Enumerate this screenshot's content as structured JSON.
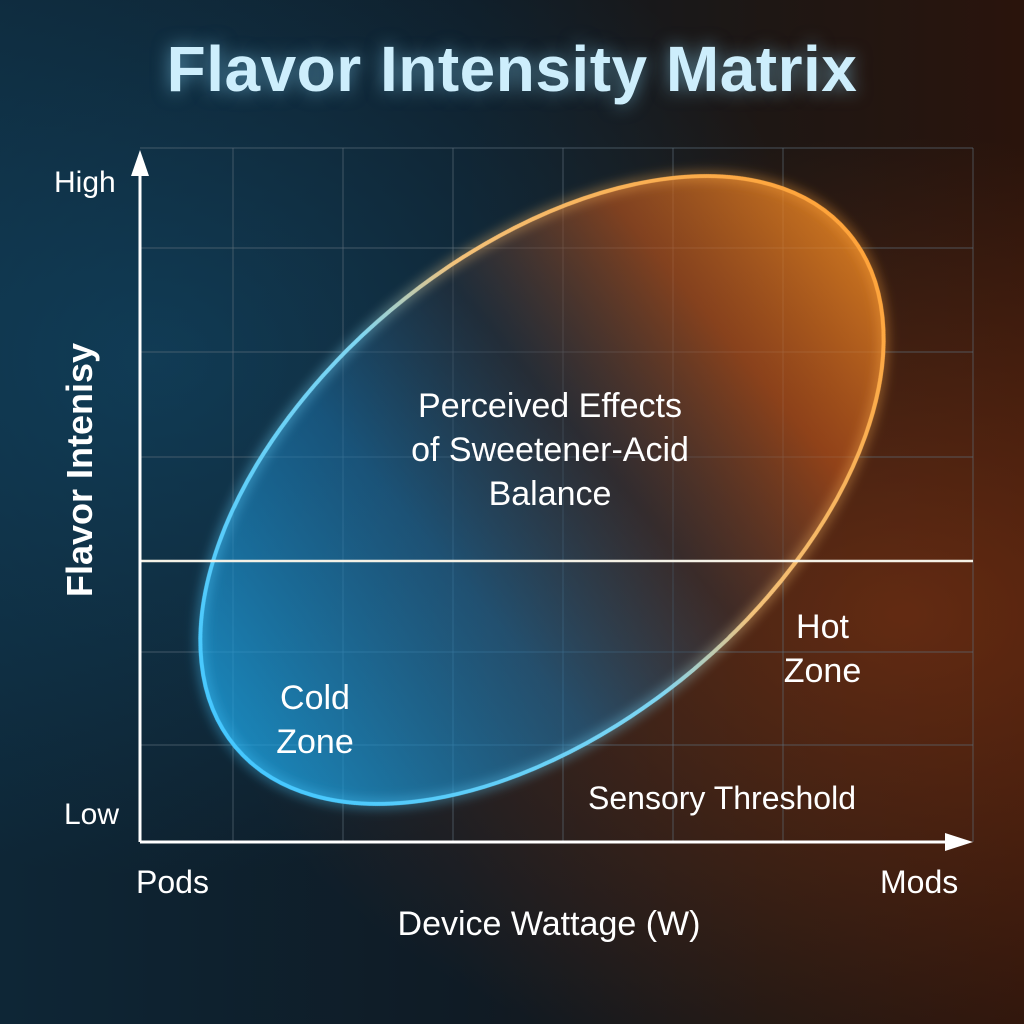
{
  "diagram": {
    "title": "Flavor Intensity Matrix",
    "y_axis": {
      "title": "Flavor Intenisy",
      "high_label": "High",
      "low_label": "Low"
    },
    "x_axis": {
      "title": "Device Wattage (W)",
      "left_label": "Pods",
      "right_label": "Mods"
    },
    "center_region": {
      "lines": [
        "Perceived Effects",
        "of Sweetener-Acid",
        "Balance"
      ]
    },
    "cold_zone": {
      "lines": [
        "Cold",
        "Zone"
      ],
      "color": "#2fb6ee"
    },
    "hot_zone": {
      "lines": [
        "Hot",
        "Zone"
      ],
      "color": "#f39a2e"
    },
    "threshold_label": "Sensory Threshold",
    "colors": {
      "title": "#cdeefc",
      "grid": "#5c6e7a",
      "axis": "#ffffff",
      "text": "#ffffff"
    }
  }
}
